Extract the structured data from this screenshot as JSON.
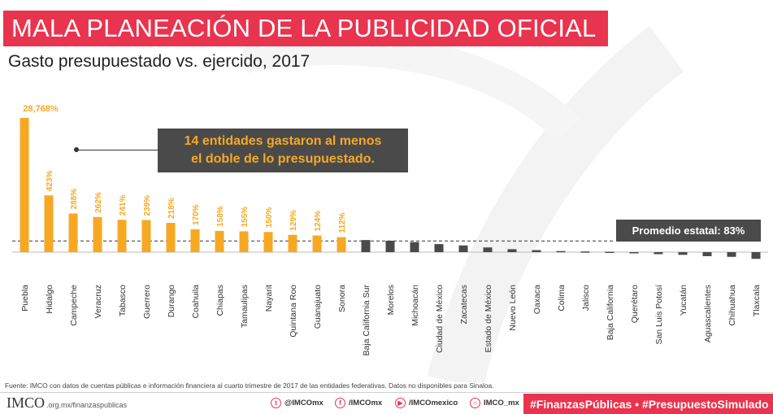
{
  "title": "MALA PLANEACIÓN DE LA PUBLICIDAD OFICIAL",
  "subtitle": "Gasto presupuestado vs. ejercido, 2017",
  "callout": {
    "line1": "14 entidades gastaron al menos",
    "line2": "el doble de lo presupuestado."
  },
  "average_label": "Promedio estatal: 83%",
  "source": "Fuente: IMCO con datos de cuentas públicas e información financiera al cuarto trimestre de 2017 de las entidades federativas. Datos no disponibles para Sinaloa.",
  "footer": {
    "logo": "IMCO",
    "url": ".org.mx/finanzaspublicas",
    "twitter": "@IMCOmx",
    "facebook": "/IMCOmx",
    "youtube": "/IMCOmexico",
    "instagram": "IMCO_mx",
    "tags": "#FinanzasPúblicas  •  #PresupuestoSimulado"
  },
  "colors": {
    "accent": "#e8344e",
    "positive_bar": "#f7a823",
    "negative_bar": "#4a4a4a",
    "callout_bg": "#4a4a4a"
  },
  "chart_data": {
    "type": "bar",
    "title": "Gasto presupuestado vs. ejercido, 2017",
    "categories": [
      "Puebla",
      "Hidalgo",
      "Campeche",
      "Veracruz",
      "Tabasco",
      "Guerrero",
      "Durango",
      "Coahuila",
      "Chiapas",
      "Tamaulipas",
      "Nayarit",
      "Quintana Roo",
      "Guanajuato",
      "Sonora",
      "Baja California Sur",
      "Morelos",
      "Michoacán",
      "Ciudad de México",
      "Zacatecas",
      "Estado de México",
      "Nuevo León",
      "Oaxaca",
      "Colima",
      "Jalisco",
      "Baja California",
      "Querétaro",
      "San Luis Potosí",
      "Yucatán",
      "Aguascalientes",
      "Chihuahua",
      "Tlaxcala"
    ],
    "values": [
      28768,
      423,
      288,
      262,
      241,
      239,
      218,
      170,
      158,
      155,
      150,
      129,
      124,
      112,
      90,
      85,
      75,
      60,
      50,
      35,
      22,
      15,
      8,
      5,
      3,
      -5,
      -15,
      -20,
      -30,
      -35,
      -50
    ],
    "data_labels": [
      "28,768%",
      "423%",
      "288%",
      "262%",
      "241%",
      "239%",
      "218%",
      "170%",
      "158%",
      "155%",
      "150%",
      "129%",
      "124%",
      "112%",
      "",
      "",
      "",
      "",
      "",
      "",
      "",
      "",
      "",
      "",
      "",
      "",
      "",
      "",
      "",
      "",
      ""
    ],
    "reference_line": {
      "value": 83,
      "label": "Promedio estatal: 83%"
    },
    "ylabel": "",
    "grid": false,
    "legend": "none"
  }
}
